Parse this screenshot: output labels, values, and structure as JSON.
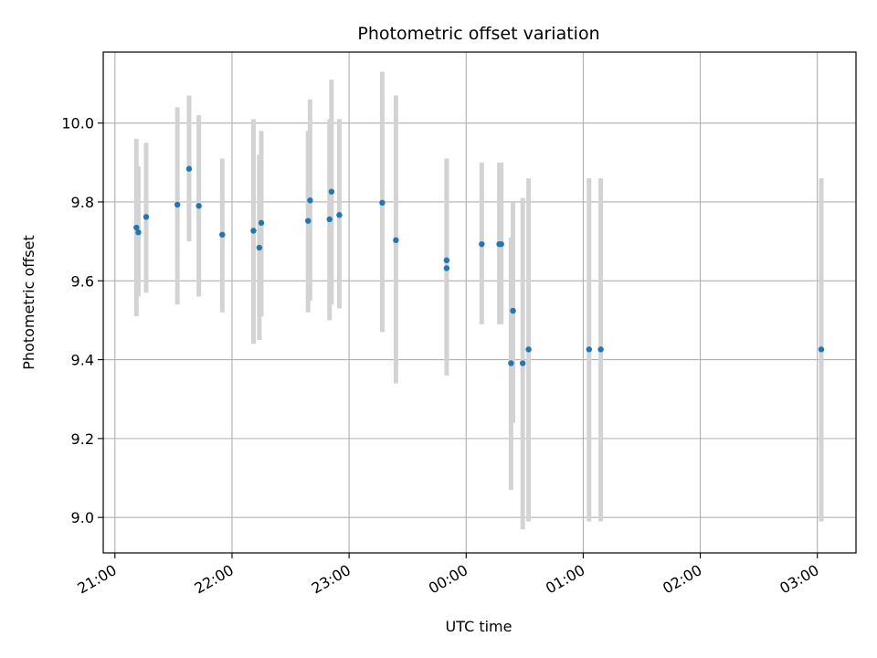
{
  "chart_data": {
    "type": "scatter",
    "title": "Photometric offset variation",
    "xlabel": "UTC time",
    "ylabel": "Photometric offset",
    "x_unit": "UTC hours since 21:00",
    "xlim_hours": [
      -0.1,
      6.33
    ],
    "ylim": [
      8.91,
      10.18
    ],
    "grid": true,
    "colors": {
      "point": "#1f77b4",
      "errorbar": "#d3d3d3",
      "grid": "#b0b0b0"
    },
    "x_ticks": [
      {
        "hour": 0,
        "label": "21:00"
      },
      {
        "hour": 1,
        "label": "22:00"
      },
      {
        "hour": 2,
        "label": "23:00"
      },
      {
        "hour": 3,
        "label": "00:00"
      },
      {
        "hour": 4,
        "label": "01:00"
      },
      {
        "hour": 5,
        "label": "02:00"
      },
      {
        "hour": 6,
        "label": "03:00"
      }
    ],
    "y_ticks": [
      {
        "value": 9.0,
        "label": "9.0"
      },
      {
        "value": 9.2,
        "label": "9.2"
      },
      {
        "value": 9.4,
        "label": "9.4"
      },
      {
        "value": 9.6,
        "label": "9.6"
      },
      {
        "value": 9.8,
        "label": "9.8"
      },
      {
        "value": 10.0,
        "label": "10.0"
      }
    ],
    "points": [
      {
        "time": "21:11",
        "y": 9.735,
        "lo": 9.51,
        "hi": 9.96
      },
      {
        "time": "21:12",
        "y": 9.723,
        "lo": 9.56,
        "hi": 9.89
      },
      {
        "time": "21:16",
        "y": 9.762,
        "lo": 9.57,
        "hi": 9.95
      },
      {
        "time": "21:32",
        "y": 9.793,
        "lo": 9.54,
        "hi": 10.04
      },
      {
        "time": "21:38",
        "y": 9.884,
        "lo": 9.7,
        "hi": 10.07
      },
      {
        "time": "21:43",
        "y": 9.79,
        "lo": 9.56,
        "hi": 10.02
      },
      {
        "time": "21:55",
        "y": 9.717,
        "lo": 9.52,
        "hi": 9.91
      },
      {
        "time": "22:11",
        "y": 9.727,
        "lo": 9.44,
        "hi": 10.01
      },
      {
        "time": "22:14",
        "y": 9.684,
        "lo": 9.45,
        "hi": 9.92
      },
      {
        "time": "22:15",
        "y": 9.747,
        "lo": 9.51,
        "hi": 9.98
      },
      {
        "time": "22:39",
        "y": 9.752,
        "lo": 9.52,
        "hi": 9.98
      },
      {
        "time": "22:40",
        "y": 9.804,
        "lo": 9.55,
        "hi": 10.06
      },
      {
        "time": "22:50",
        "y": 9.756,
        "lo": 9.5,
        "hi": 10.01
      },
      {
        "time": "22:51",
        "y": 9.826,
        "lo": 9.54,
        "hi": 10.11
      },
      {
        "time": "22:55",
        "y": 9.767,
        "lo": 9.53,
        "hi": 10.01
      },
      {
        "time": "23:17",
        "y": 9.798,
        "lo": 9.47,
        "hi": 10.13
      },
      {
        "time": "23:24",
        "y": 9.703,
        "lo": 9.34,
        "hi": 10.07
      },
      {
        "time": "23:50",
        "y": 9.632,
        "lo": 9.36,
        "hi": 9.91
      },
      {
        "time": "23:50",
        "y": 9.652,
        "lo": 9.4,
        "hi": 9.91
      },
      {
        "time": "00:08",
        "y": 9.693,
        "lo": 9.49,
        "hi": 9.9
      },
      {
        "time": "00:17",
        "y": 9.693,
        "lo": 9.49,
        "hi": 9.9
      },
      {
        "time": "00:18",
        "y": 9.693,
        "lo": 9.49,
        "hi": 9.9
      },
      {
        "time": "00:23",
        "y": 9.391,
        "lo": 9.07,
        "hi": 9.71
      },
      {
        "time": "00:24",
        "y": 9.524,
        "lo": 9.24,
        "hi": 9.8
      },
      {
        "time": "00:29",
        "y": 9.391,
        "lo": 8.97,
        "hi": 9.81
      },
      {
        "time": "00:32",
        "y": 9.426,
        "lo": 8.99,
        "hi": 9.86
      },
      {
        "time": "01:03",
        "y": 9.426,
        "lo": 8.99,
        "hi": 9.86
      },
      {
        "time": "01:09",
        "y": 9.426,
        "lo": 8.99,
        "hi": 9.86
      },
      {
        "time": "03:02",
        "y": 9.426,
        "lo": 8.99,
        "hi": 9.86
      }
    ]
  }
}
